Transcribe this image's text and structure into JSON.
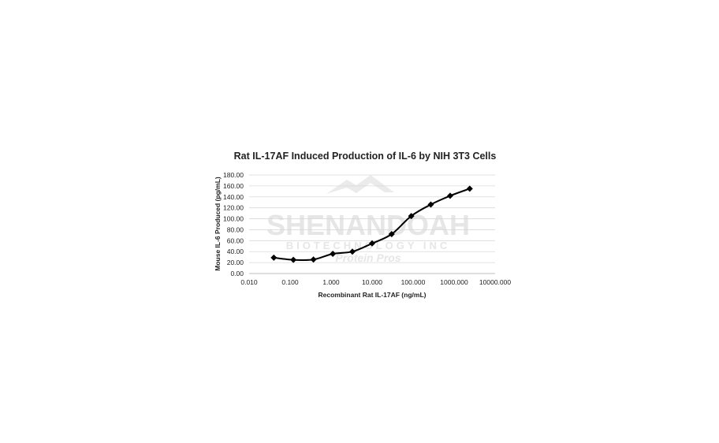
{
  "chart_data": {
    "type": "line",
    "title": "Rat IL-17AF Induced Production of IL-6 by NIH 3T3 Cells",
    "xlabel": "Recombinant Rat IL-17AF (ng/mL)",
    "ylabel": "Mouse IL-6 Produced (pg/mL)",
    "x_scale": "log",
    "xlim": [
      0.01,
      10000
    ],
    "ylim": [
      0,
      180
    ],
    "grid": true,
    "x_tick_labels": [
      "0.010",
      "0.100",
      "1.000",
      "10.000",
      "100.000",
      "1000.000",
      "10000.000"
    ],
    "y_tick_labels": [
      "0.00",
      "20.00",
      "40.00",
      "60.00",
      "80.00",
      "100.00",
      "120.00",
      "140.00",
      "160.00",
      "180.00"
    ],
    "x_ticks": [
      0.01,
      0.1,
      1,
      10,
      100,
      1000,
      10000
    ],
    "y_ticks": [
      0,
      20,
      40,
      60,
      80,
      100,
      120,
      140,
      160,
      180
    ],
    "series": [
      {
        "marker": "diamond",
        "color": "#000000",
        "x": [
          0.04,
          0.12,
          0.37,
          1.1,
          3.3,
          10,
          30,
          90,
          270,
          800,
          2400
        ],
        "y": [
          29,
          25,
          25.5,
          36,
          40,
          55,
          72,
          105,
          126,
          142,
          155
        ]
      }
    ]
  },
  "watermark": {
    "line1": "SHENANDOAH",
    "line2": "BIOTECHNOLOGY INC",
    "line3": "Protein Pros"
  }
}
